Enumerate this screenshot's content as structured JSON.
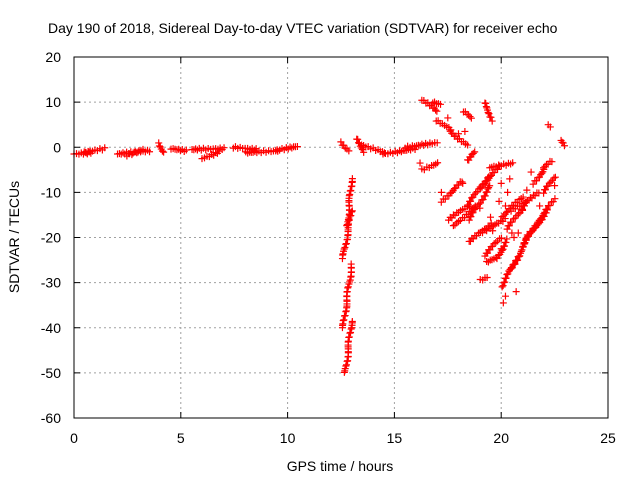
{
  "chart_data": {
    "type": "scatter",
    "title": "Day 190 of 2018, Sidereal Day-to-day VTEC variation (SDTVAR) for receiver echo",
    "xlabel": "GPS time / hours",
    "ylabel": "SDTVAR / TECUs",
    "xlim": [
      0,
      25
    ],
    "ylim": [
      -60,
      20
    ],
    "xticks": [
      0,
      5,
      10,
      15,
      20,
      25
    ],
    "yticks": [
      -60,
      -50,
      -40,
      -30,
      -20,
      -10,
      0,
      10,
      20
    ],
    "xtick_labels": [
      "0",
      "5",
      "10",
      "15",
      "20",
      "25"
    ],
    "ytick_labels": [
      "-60",
      "-50",
      "-40",
      "-30",
      "-20",
      "-10",
      "0",
      "10",
      "20"
    ],
    "grid": true,
    "marker": "+",
    "color": "#ff0000",
    "series": [
      {
        "name": "SDTVAR",
        "segments": [
          [
            0.0,
            -1.5,
            0.8,
            -1.2
          ],
          [
            0.5,
            -1.2,
            1.4,
            -0.3
          ],
          [
            2.0,
            -1.5,
            3.5,
            -0.8
          ],
          [
            2.5,
            -1.8,
            3.2,
            -0.5
          ],
          [
            4.0,
            0.8,
            4.2,
            -1.2
          ],
          [
            4.5,
            -0.3,
            5.3,
            -0.8
          ],
          [
            5.5,
            -0.5,
            7.0,
            -0.3
          ],
          [
            6.0,
            -2.5,
            6.8,
            -1.0
          ],
          [
            7.5,
            0.0,
            8.5,
            -0.5
          ],
          [
            8.0,
            -1.2,
            9.5,
            -0.8
          ],
          [
            9.5,
            -0.6,
            10.5,
            0.2
          ],
          [
            12.6,
            -24.5,
            13.0,
            -14.0
          ],
          [
            12.7,
            -50.0,
            13.0,
            -38.5
          ],
          [
            12.6,
            -40.0,
            13.0,
            -26.0
          ],
          [
            12.8,
            -17.5,
            13.0,
            -7.0
          ],
          [
            12.5,
            1.0,
            12.9,
            -0.8
          ],
          [
            13.2,
            2.0,
            13.6,
            -1.0
          ],
          [
            13.5,
            0.5,
            14.5,
            -1.2
          ],
          [
            14.5,
            -1.5,
            16.0,
            -0.3
          ],
          [
            15.5,
            0.0,
            17.0,
            1.0
          ],
          [
            16.3,
            10.5,
            17.0,
            8.0
          ],
          [
            16.8,
            10.0,
            17.2,
            9.5
          ],
          [
            16.3,
            -5.0,
            17.0,
            -3.5
          ],
          [
            17.0,
            6.0,
            17.6,
            4.0
          ],
          [
            17.6,
            3.5,
            18.4,
            0.5
          ],
          [
            18.2,
            8.0,
            18.6,
            6.5
          ],
          [
            19.2,
            10.0,
            19.6,
            6.0
          ],
          [
            18.4,
            -3.0,
            18.8,
            -1.0
          ],
          [
            17.2,
            -12.0,
            18.2,
            -7.5
          ],
          [
            17.5,
            -16.0,
            18.5,
            -13.0
          ],
          [
            17.8,
            -17.5,
            18.8,
            -13.0
          ],
          [
            18.4,
            -13.0,
            19.4,
            -6.5
          ],
          [
            18.5,
            -16.0,
            19.5,
            -8.5
          ],
          [
            19.0,
            -9.0,
            20.0,
            -4.0
          ],
          [
            19.5,
            -4.5,
            20.5,
            -3.5
          ],
          [
            18.5,
            -21.0,
            19.5,
            -17.0
          ],
          [
            19.0,
            -19.0,
            20.2,
            -16.0
          ],
          [
            19.2,
            -24.0,
            20.0,
            -20.0
          ],
          [
            19.3,
            -25.5,
            19.8,
            -24.5
          ],
          [
            19.0,
            -29.5,
            19.3,
            -28.8
          ],
          [
            19.8,
            -24.5,
            20.3,
            -20.5
          ],
          [
            20.0,
            -31.0,
            20.8,
            -24.0
          ],
          [
            20.5,
            -27.0,
            21.2,
            -20.5
          ],
          [
            20.3,
            -18.0,
            21.2,
            -12.0
          ],
          [
            20.0,
            -15.5,
            21.0,
            -11.0
          ],
          [
            20.5,
            -14.0,
            21.8,
            -10.0
          ],
          [
            21.0,
            -22.0,
            21.8,
            -16.0
          ],
          [
            21.2,
            -20.0,
            22.2,
            -14.0
          ],
          [
            21.5,
            -18.0,
            22.5,
            -11.5
          ],
          [
            21.5,
            -8.0,
            22.0,
            -5.0
          ],
          [
            22.0,
            -4.5,
            22.4,
            -3.0
          ],
          [
            22.0,
            -10.0,
            22.5,
            -6.5
          ],
          [
            22.8,
            1.5,
            23.0,
            0.5
          ]
        ],
        "points": [
          [
            17.5,
            6.5
          ],
          [
            18.0,
            3.0
          ],
          [
            18.3,
            3.5
          ],
          [
            17.2,
            -10.0
          ],
          [
            19.0,
            -13.5
          ],
          [
            19.9,
            -12.0
          ],
          [
            20.2,
            -13.0
          ],
          [
            20.3,
            -10.0
          ],
          [
            20.0,
            -8.0
          ],
          [
            20.4,
            -7.0
          ],
          [
            20.1,
            -34.5
          ],
          [
            20.2,
            -33.0
          ],
          [
            20.7,
            -32.0
          ],
          [
            21.2,
            -9.5
          ],
          [
            22.2,
            5.0
          ],
          [
            22.3,
            4.5
          ],
          [
            20.5,
            -19.0
          ],
          [
            19.5,
            -15.5
          ],
          [
            19.6,
            -18.5
          ],
          [
            21.0,
            -14.0
          ],
          [
            16.2,
            -3.5
          ],
          [
            20.6,
            -20.0
          ],
          [
            20.8,
            -19.0
          ],
          [
            20.0,
            -22.5
          ],
          [
            21.8,
            -13.0
          ],
          [
            22.5,
            -8.5
          ],
          [
            21.4,
            -5.5
          ],
          [
            18.2,
            -8.0
          ]
        ]
      }
    ]
  }
}
